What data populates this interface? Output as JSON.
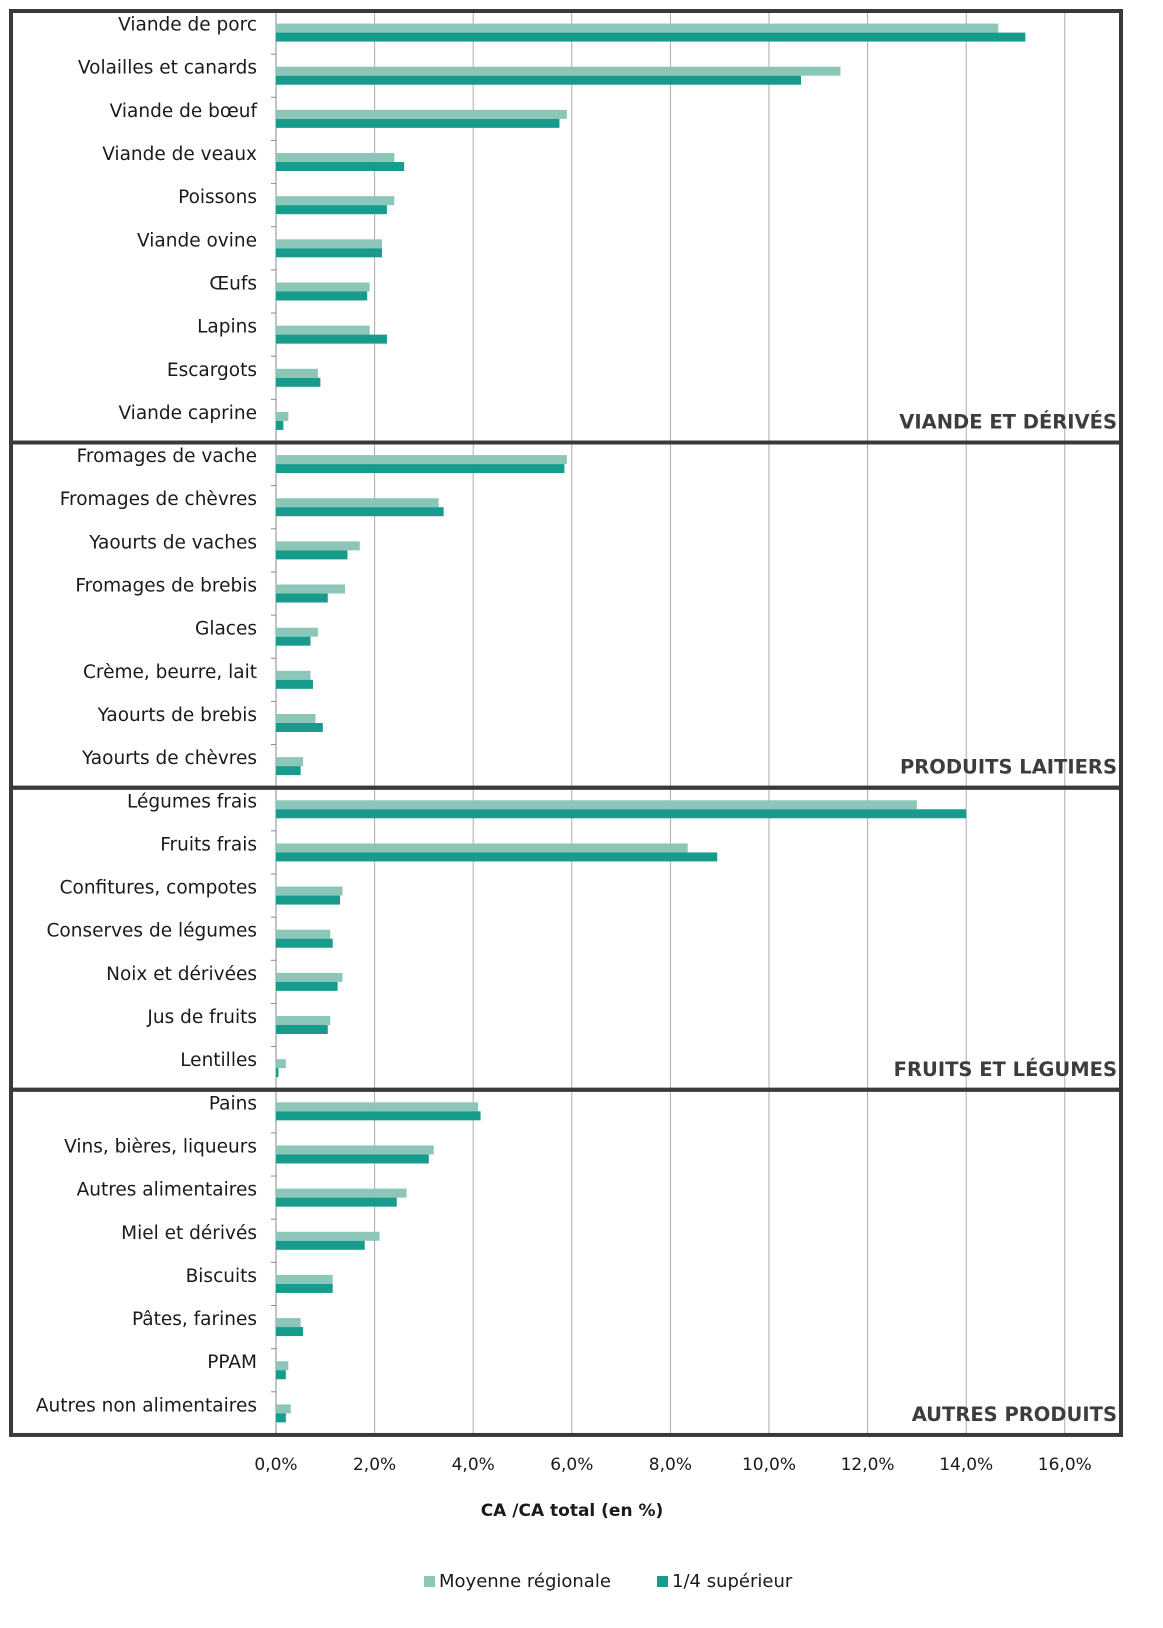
{
  "chart_data": {
    "type": "bar",
    "orientation": "horizontal",
    "xlabel": "CA /CA total (en %)",
    "xlim": [
      0,
      16
    ],
    "x_ticks": [
      "0,0%",
      "2,0%",
      "4,0%",
      "6,0%",
      "8,0%",
      "10,0%",
      "12,0%",
      "14,0%",
      "16,0%"
    ],
    "grid": "vertical",
    "legend_position": "bottom",
    "colors": {
      "moyenne": "#8cc6b8",
      "quart": "#169b8c",
      "frame": "#3a3a3a",
      "grid": "#aaaaaa"
    },
    "series": [
      {
        "name": "Moyenne régionale",
        "key": "moyenne"
      },
      {
        "name": "1/4 supérieur",
        "key": "quart"
      }
    ],
    "groups": [
      {
        "label": "VIANDE ET DÉRIVÉS",
        "categories": [
          {
            "name": "Viande de porc",
            "moyenne": 14.65,
            "quart": 15.2
          },
          {
            "name": "Volailles et canards",
            "moyenne": 11.45,
            "quart": 10.65
          },
          {
            "name": "Viande de bœuf",
            "moyenne": 5.9,
            "quart": 5.75
          },
          {
            "name": "Viande de veaux",
            "moyenne": 2.4,
            "quart": 2.6
          },
          {
            "name": "Poissons",
            "moyenne": 2.4,
            "quart": 2.25
          },
          {
            "name": "Viande ovine",
            "moyenne": 2.15,
            "quart": 2.15
          },
          {
            "name": "Œufs",
            "moyenne": 1.9,
            "quart": 1.85
          },
          {
            "name": "Lapins",
            "moyenne": 1.9,
            "quart": 2.25
          },
          {
            "name": "Escargots",
            "moyenne": 0.85,
            "quart": 0.9
          },
          {
            "name": "Viande caprine",
            "moyenne": 0.25,
            "quart": 0.15
          }
        ]
      },
      {
        "label": "PRODUITS LAITIERS",
        "categories": [
          {
            "name": "Fromages de vache",
            "moyenne": 5.9,
            "quart": 5.85
          },
          {
            "name": "Fromages de chèvres",
            "moyenne": 3.3,
            "quart": 3.4
          },
          {
            "name": "Yaourts de vaches",
            "moyenne": 1.7,
            "quart": 1.45
          },
          {
            "name": "Fromages de brebis",
            "moyenne": 1.4,
            "quart": 1.05
          },
          {
            "name": "Glaces",
            "moyenne": 0.85,
            "quart": 0.7
          },
          {
            "name": "Crème, beurre, lait",
            "moyenne": 0.7,
            "quart": 0.75
          },
          {
            "name": "Yaourts de brebis",
            "moyenne": 0.8,
            "quart": 0.95
          },
          {
            "name": "Yaourts de chèvres",
            "moyenne": 0.55,
            "quart": 0.5
          }
        ]
      },
      {
        "label": "FRUITS ET LÉGUMES",
        "categories": [
          {
            "name": "Légumes frais",
            "moyenne": 13.0,
            "quart": 14.0
          },
          {
            "name": "Fruits frais",
            "moyenne": 8.35,
            "quart": 8.95
          },
          {
            "name": "Confitures, compotes",
            "moyenne": 1.35,
            "quart": 1.3
          },
          {
            "name": "Conserves de légumes",
            "moyenne": 1.1,
            "quart": 1.15
          },
          {
            "name": "Noix et dérivées",
            "moyenne": 1.35,
            "quart": 1.25
          },
          {
            "name": "Jus de fruits",
            "moyenne": 1.1,
            "quart": 1.05
          },
          {
            "name": "Lentilles",
            "moyenne": 0.2,
            "quart": 0.05
          }
        ]
      },
      {
        "label": "AUTRES PRODUITS",
        "categories": [
          {
            "name": "Pains",
            "moyenne": 4.1,
            "quart": 4.15
          },
          {
            "name": "Vins, bières, liqueurs",
            "moyenne": 3.2,
            "quart": 3.1
          },
          {
            "name": "Autres alimentaires",
            "moyenne": 2.65,
            "quart": 2.45
          },
          {
            "name": "Miel et dérivés",
            "moyenne": 2.1,
            "quart": 1.8
          },
          {
            "name": "Biscuits",
            "moyenne": 1.15,
            "quart": 1.15
          },
          {
            "name": "Pâtes, farines",
            "moyenne": 0.5,
            "quart": 0.55
          },
          {
            "name": "PPAM",
            "moyenne": 0.25,
            "quart": 0.2
          },
          {
            "name": "Autres non alimentaires",
            "moyenne": 0.3,
            "quart": 0.2
          }
        ]
      }
    ]
  }
}
